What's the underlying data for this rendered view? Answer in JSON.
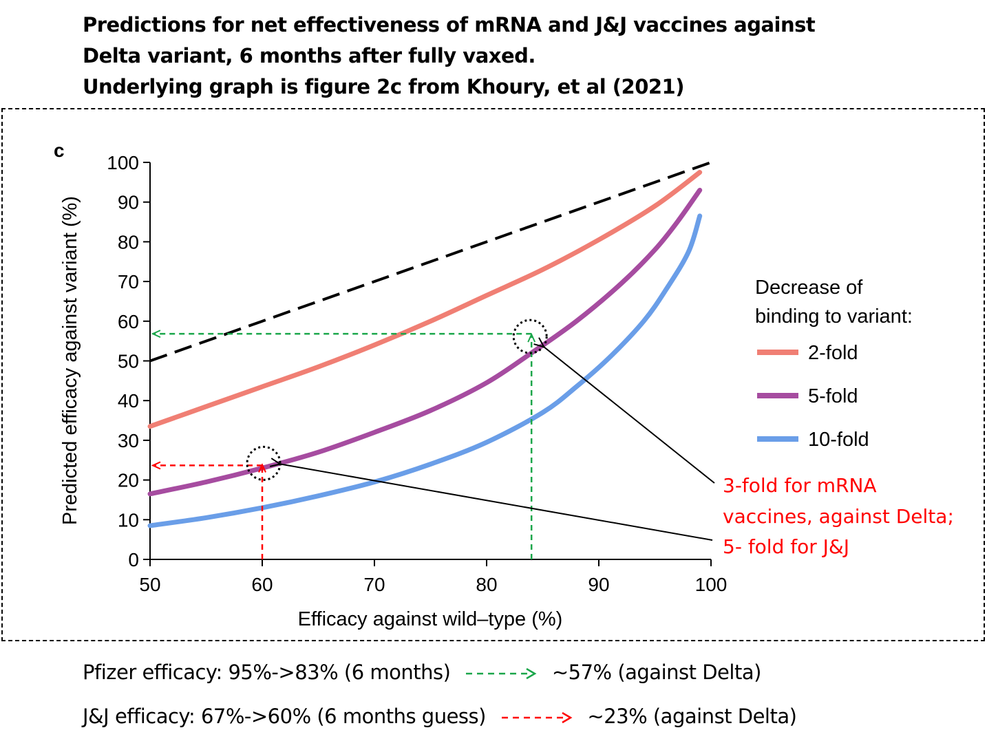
{
  "title_lines": [
    "Predictions for net effectiveness of mRNA and J&J vaccines against",
    "Delta variant, 6 months after fully vaxed.",
    "Underlying graph is figure 2c from Khoury, et al (2021)"
  ],
  "chart_data": {
    "type": "line",
    "panel_label": "c",
    "xlabel": "Efficacy against wild–type (%)",
    "ylabel": "Predicted efficacy against variant (%)",
    "xlim": [
      50,
      100
    ],
    "ylim": [
      0,
      100
    ],
    "xticks": [
      50,
      60,
      70,
      80,
      90,
      100
    ],
    "yticks": [
      0,
      10,
      20,
      30,
      40,
      50,
      60,
      70,
      80,
      90,
      100
    ],
    "grid": false,
    "legend_title": [
      "Decrease of",
      "binding to variant:"
    ],
    "legend_position": "right",
    "reference_line": {
      "style": "dashed",
      "color": "#000000",
      "x": [
        50,
        100
      ],
      "y": [
        50,
        100
      ]
    },
    "series": [
      {
        "name": "2-fold",
        "color": "#f07f74",
        "x": [
          50,
          55,
          60,
          65,
          70,
          75,
          80,
          85,
          90,
          95,
          99
        ],
        "y": [
          33.5,
          38.5,
          43.5,
          48.5,
          54,
          60,
          66.5,
          73,
          80.5,
          89,
          97.5
        ]
      },
      {
        "name": "5-fold",
        "color": "#a64ca0",
        "x": [
          50,
          55,
          60,
          65,
          70,
          75,
          80,
          84,
          88,
          92,
          95,
          97,
          99
        ],
        "y": [
          16.5,
          19.5,
          23,
          27,
          32,
          37.5,
          44.5,
          52,
          60,
          69.5,
          78,
          85,
          93
        ]
      },
      {
        "name": "10-fold",
        "color": "#6a9ee8",
        "x": [
          50,
          55,
          60,
          65,
          70,
          75,
          80,
          85,
          88,
          91,
          94,
          96,
          98,
          99
        ],
        "y": [
          8.5,
          10.5,
          13,
          16,
          19.5,
          24,
          29.5,
          37,
          43.5,
          51,
          60,
          68,
          77.5,
          86.5
        ]
      }
    ],
    "annotations": {
      "text_lines": [
        "3-fold for mRNA",
        "vaccines, against Delta;",
        "5- fold for J&J"
      ],
      "text_color": "#ff0000",
      "pfizer_point": {
        "x": 84,
        "y": 57,
        "color": "#1aa64a"
      },
      "jj_point": {
        "x": 60,
        "y": 23.5,
        "color": "#ff0000"
      }
    }
  },
  "notes": [
    {
      "left": "Pfizer efficacy: 95%->83% (6 months)",
      "right": "~57% (against Delta)",
      "arrow_color": "#1aa64a"
    },
    {
      "left": "J&J efficacy: 67%->60% (6 months guess)",
      "right": "~23% (against Delta)",
      "arrow_color": "#ff0000"
    }
  ]
}
